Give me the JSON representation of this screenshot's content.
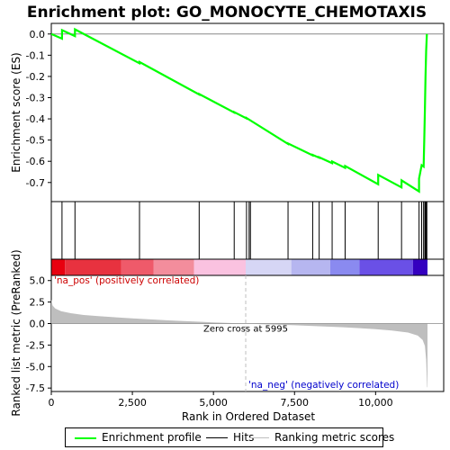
{
  "chart_data": {
    "type": "line",
    "title": "Enrichment plot: GO_MONOCYTE_CHEMOTAXIS",
    "xlabel": "Rank in Ordered Dataset",
    "top_ylabel": "Enrichment score (ES)",
    "bottom_ylabel": "Ranked list metric (PreRanked)",
    "xlim": [
      0,
      12100
    ],
    "x_ticks": [
      0,
      2500,
      5000,
      7500,
      10000
    ],
    "x_tick_labels": [
      "0",
      "2,500",
      "5,000",
      "7,500",
      "10,000"
    ],
    "es_ylim": [
      -0.79,
      0.05
    ],
    "es_ticks": [
      0.0,
      -0.1,
      -0.2,
      -0.3,
      -0.4,
      -0.5,
      -0.6,
      -0.7
    ],
    "es_tick_labels": [
      "0.0",
      "-0.1",
      "-0.2",
      "-0.3",
      "-0.4",
      "-0.5",
      "-0.6",
      "-0.7"
    ],
    "metric_ylim": [
      -7.9,
      5.6
    ],
    "metric_ticks": [
      5.0,
      2.5,
      0.0,
      -2.5,
      -5.0,
      -7.5
    ],
    "metric_tick_labels": [
      "5.0",
      "2.5",
      "0.0",
      "-2.5",
      "-5.0",
      "-7.5"
    ],
    "n_genes": 11600,
    "zero_cross": 5995,
    "zero_cross_label": "Zero cross at 5995",
    "pos_label": "'na_pos' (positively correlated)",
    "neg_label": "'na_neg' (negatively correlated)",
    "hits": [
      330,
      730,
      2720,
      4560,
      5640,
      6020,
      6100,
      6140,
      7300,
      8060,
      8260,
      8660,
      9060,
      10080,
      10800,
      11340,
      11420,
      11480,
      11520,
      11540,
      11560,
      11580
    ],
    "enrichment_profile": [
      [
        0,
        0.0
      ],
      [
        329,
        -0.022
      ],
      [
        330,
        0.018
      ],
      [
        729,
        -0.01
      ],
      [
        730,
        0.022
      ],
      [
        2719,
        -0.138
      ],
      [
        2720,
        -0.132
      ],
      [
        4559,
        -0.285
      ],
      [
        4560,
        -0.283
      ],
      [
        5639,
        -0.37
      ],
      [
        5640,
        -0.368
      ],
      [
        6019,
        -0.398
      ],
      [
        6020,
        -0.396
      ],
      [
        7299,
        -0.518
      ],
      [
        7300,
        -0.516
      ],
      [
        8059,
        -0.572
      ],
      [
        8060,
        -0.57
      ],
      [
        8259,
        -0.583
      ],
      [
        8260,
        -0.581
      ],
      [
        8659,
        -0.609
      ],
      [
        8660,
        -0.601
      ],
      [
        9059,
        -0.631
      ],
      [
        9060,
        -0.622
      ],
      [
        10079,
        -0.708
      ],
      [
        10080,
        -0.664
      ],
      [
        10799,
        -0.723
      ],
      [
        10800,
        -0.69
      ],
      [
        11339,
        -0.742
      ],
      [
        11340,
        -0.682
      ],
      [
        11420,
        -0.618
      ],
      [
        11480,
        -0.625
      ],
      [
        11500,
        -0.5
      ],
      [
        11520,
        -0.36
      ],
      [
        11540,
        -0.2
      ],
      [
        11560,
        -0.08
      ],
      [
        11580,
        0.0
      ]
    ],
    "metric_profile": [
      [
        0,
        2.8
      ],
      [
        40,
        2.1
      ],
      [
        120,
        1.75
      ],
      [
        300,
        1.45
      ],
      [
        600,
        1.2
      ],
      [
        1000,
        1.0
      ],
      [
        1500,
        0.85
      ],
      [
        2000,
        0.72
      ],
      [
        2500,
        0.6
      ],
      [
        3000,
        0.5
      ],
      [
        3500,
        0.4
      ],
      [
        4000,
        0.3
      ],
      [
        4500,
        0.22
      ],
      [
        5000,
        0.14
      ],
      [
        5500,
        0.06
      ],
      [
        5995,
        0.0
      ],
      [
        6500,
        -0.07
      ],
      [
        7000,
        -0.13
      ],
      [
        7500,
        -0.2
      ],
      [
        8000,
        -0.27
      ],
      [
        8500,
        -0.35
      ],
      [
        9000,
        -0.43
      ],
      [
        9500,
        -0.53
      ],
      [
        10000,
        -0.65
      ],
      [
        10500,
        -0.82
      ],
      [
        11000,
        -1.05
      ],
      [
        11300,
        -1.4
      ],
      [
        11450,
        -1.9
      ],
      [
        11520,
        -2.6
      ],
      [
        11560,
        -4.2
      ],
      [
        11590,
        -7.4
      ],
      [
        11600,
        -7.4
      ]
    ],
    "colorbar_segments": [
      {
        "from": 0,
        "to": 420,
        "color": "#e8000f"
      },
      {
        "from": 420,
        "to": 2150,
        "color": "#e8323f"
      },
      {
        "from": 2150,
        "to": 3150,
        "color": "#ef5a6a"
      },
      {
        "from": 3150,
        "to": 4400,
        "color": "#f38d9c"
      },
      {
        "from": 4400,
        "to": 5995,
        "color": "#fac2e0"
      },
      {
        "from": 5995,
        "to": 7400,
        "color": "#d6d6f5"
      },
      {
        "from": 7400,
        "to": 8600,
        "color": "#b6b6f0"
      },
      {
        "from": 8600,
        "to": 9500,
        "color": "#8a8af0"
      },
      {
        "from": 9500,
        "to": 11150,
        "color": "#6a50e6"
      },
      {
        "from": 11150,
        "to": 11600,
        "color": "#3400bf"
      }
    ],
    "legend": [
      "Enrichment profile",
      "Hits",
      "Ranking metric scores"
    ],
    "colors": {
      "profile": "#00ff00",
      "hits": "#000000",
      "metric_fill": "#bebebe",
      "zero_line": "#bebebe",
      "pos_text": "#cc0000",
      "neg_text": "#0000cc"
    }
  }
}
